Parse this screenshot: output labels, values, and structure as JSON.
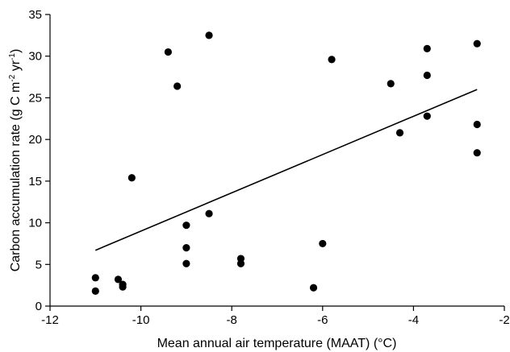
{
  "chart_data": {
    "type": "scatter",
    "xlabel": "Mean annual air temperature (MAAT) (°C)",
    "ylabel_parts": {
      "main": "Carbon accumulation rate (g C m",
      "sup1": "-2",
      "mid": " yr",
      "sup2": "-1",
      "end": ")"
    },
    "xlim": [
      -12,
      -2
    ],
    "ylim": [
      0,
      35
    ],
    "xticks": [
      -12,
      -10,
      -8,
      -6,
      -4,
      -2
    ],
    "yticks": [
      0,
      5,
      10,
      15,
      20,
      25,
      30,
      35
    ],
    "xtick_labels": [
      "-12",
      "-10",
      "-8",
      "-6",
      "-4",
      "-2"
    ],
    "ytick_labels": [
      "0",
      "5",
      "10",
      "15",
      "20",
      "25",
      "30",
      "35"
    ],
    "grid": false,
    "points": [
      {
        "x": -11.0,
        "y": 3.4
      },
      {
        "x": -11.0,
        "y": 1.8
      },
      {
        "x": -10.5,
        "y": 3.2
      },
      {
        "x": -10.4,
        "y": 2.6
      },
      {
        "x": -10.4,
        "y": 2.3
      },
      {
        "x": -10.2,
        "y": 15.4
      },
      {
        "x": -9.4,
        "y": 30.5
      },
      {
        "x": -9.2,
        "y": 26.4
      },
      {
        "x": -9.0,
        "y": 9.7
      },
      {
        "x": -9.0,
        "y": 7.0
      },
      {
        "x": -9.0,
        "y": 5.1
      },
      {
        "x": -8.5,
        "y": 32.5
      },
      {
        "x": -8.5,
        "y": 11.1
      },
      {
        "x": -7.8,
        "y": 5.7
      },
      {
        "x": -7.8,
        "y": 5.1
      },
      {
        "x": -6.2,
        "y": 2.2
      },
      {
        "x": -6.0,
        "y": 7.5
      },
      {
        "x": -5.8,
        "y": 29.6
      },
      {
        "x": -4.5,
        "y": 26.7
      },
      {
        "x": -4.3,
        "y": 20.8
      },
      {
        "x": -3.7,
        "y": 30.9
      },
      {
        "x": -3.7,
        "y": 27.7
      },
      {
        "x": -3.7,
        "y": 22.8
      },
      {
        "x": -2.6,
        "y": 31.5
      },
      {
        "x": -2.6,
        "y": 21.8
      },
      {
        "x": -2.6,
        "y": 18.4
      }
    ],
    "trendline": {
      "x": [
        -11.0,
        -2.6
      ],
      "y": [
        6.7,
        26.0
      ]
    },
    "marker_color": "#000000",
    "line_color": "#000000"
  }
}
